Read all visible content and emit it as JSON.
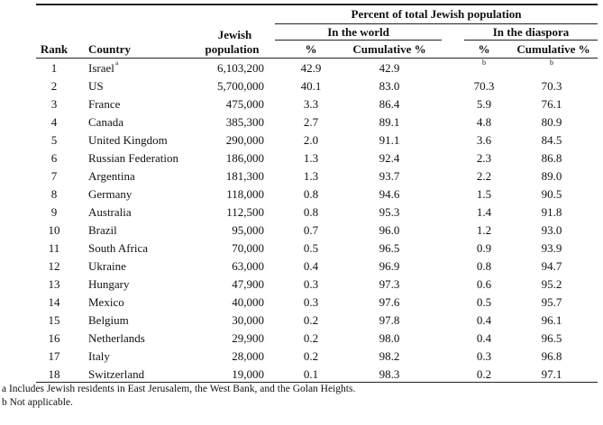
{
  "header": {
    "group": "Percent of total Jewish population",
    "world": "In the world",
    "diaspora": "In the diaspora",
    "rank": "Rank",
    "country": "Country",
    "pop1": "Jewish",
    "pop2": "population",
    "pct": "%",
    "cum": "Cumulative %",
    "dpct": "%",
    "dcum": "Cumulative %"
  },
  "rows": [
    {
      "rank": "1",
      "country": "Israel",
      "sup": "a",
      "pop": "6,103,200",
      "wp": "42.9",
      "wc": "42.9",
      "dp": "b",
      "dc": "b"
    },
    {
      "rank": "2",
      "country": "US",
      "pop": "5,700,000",
      "wp": "40.1",
      "wc": "83.0",
      "dp": "70.3",
      "dc": "70.3"
    },
    {
      "rank": "3",
      "country": "France",
      "pop": "475,000",
      "wp": "3.3",
      "wc": "86.4",
      "dp": "5.9",
      "dc": "76.1"
    },
    {
      "rank": "4",
      "country": "Canada",
      "pop": "385,300",
      "wp": "2.7",
      "wc": "89.1",
      "dp": "4.8",
      "dc": "80.9"
    },
    {
      "rank": "5",
      "country": "United Kingdom",
      "pop": "290,000",
      "wp": "2.0",
      "wc": "91.1",
      "dp": "3.6",
      "dc": "84.5"
    },
    {
      "rank": "6",
      "country": "Russian Federation",
      "pop": "186,000",
      "wp": "1.3",
      "wc": "92.4",
      "dp": "2.3",
      "dc": "86.8"
    },
    {
      "rank": "7",
      "country": "Argentina",
      "pop": "181,300",
      "wp": "1.3",
      "wc": "93.7",
      "dp": "2.2",
      "dc": "89.0"
    },
    {
      "rank": "8",
      "country": "Germany",
      "pop": "118,000",
      "wp": "0.8",
      "wc": "94.6",
      "dp": "1.5",
      "dc": "90.5"
    },
    {
      "rank": "9",
      "country": "Australia",
      "pop": "112,500",
      "wp": "0.8",
      "wc": "95.3",
      "dp": "1.4",
      "dc": "91.8"
    },
    {
      "rank": "10",
      "country": "Brazil",
      "pop": "95,000",
      "wp": "0.7",
      "wc": "96.0",
      "dp": "1.2",
      "dc": "93.0"
    },
    {
      "rank": "11",
      "country": "South Africa",
      "pop": "70,000",
      "wp": "0.5",
      "wc": "96.5",
      "dp": "0.9",
      "dc": "93.9"
    },
    {
      "rank": "12",
      "country": "Ukraine",
      "pop": "63,000",
      "wp": "0.4",
      "wc": "96.9",
      "dp": "0.8",
      "dc": "94.7"
    },
    {
      "rank": "13",
      "country": "Hungary",
      "pop": "47,900",
      "wp": "0.3",
      "wc": "97.3",
      "dp": "0.6",
      "dc": "95.2"
    },
    {
      "rank": "14",
      "country": "Mexico",
      "pop": "40,000",
      "wp": "0.3",
      "wc": "97.6",
      "dp": "0.5",
      "dc": "95.7"
    },
    {
      "rank": "15",
      "country": "Belgium",
      "pop": "30,000",
      "wp": "0.2",
      "wc": "97.8",
      "dp": "0.4",
      "dc": "96.1"
    },
    {
      "rank": "16",
      "country": "Netherlands",
      "pop": "29,900",
      "wp": "0.2",
      "wc": "98.0",
      "dp": "0.4",
      "dc": "96.5"
    },
    {
      "rank": "17",
      "country": "Italy",
      "pop": "28,000",
      "wp": "0.2",
      "wc": "98.2",
      "dp": "0.3",
      "dc": "96.8"
    },
    {
      "rank": "18",
      "country": "Switzerland",
      "pop": "19,000",
      "wp": "0.1",
      "wc": "98.3",
      "dp": "0.2",
      "dc": "97.1"
    }
  ],
  "footnotes": [
    "a Includes Jewish residents in East Jerusalem, the West Bank, and the Golan Heights.",
    "b Not applicable."
  ]
}
